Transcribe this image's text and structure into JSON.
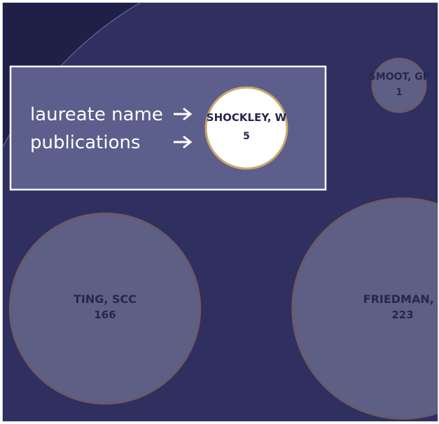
{
  "colors": {
    "background": "#2f3060",
    "background_corner": "#1f2048",
    "bubble_fill": "#5d5f85",
    "bubble_stroke": "#6b5a6a",
    "bubble_text": "#26264e",
    "highlight_fill": "#ffffff",
    "highlight_stroke": "#c9a86a",
    "legend_box_fill": "#5c5e8c",
    "legend_box_stroke": "#ffffff",
    "legend_text": "#ffffff"
  },
  "legend": {
    "name_label": "laureate name",
    "count_label": "publications",
    "example": {
      "name": "SHOCKLEY, W",
      "count": 5
    }
  },
  "chart_data": {
    "type": "bubble",
    "size_encodes": "publications",
    "bubbles": [
      {
        "name": "SMOOT, GF",
        "count": 1
      },
      {
        "name": "TING, SCC",
        "count": 166
      },
      {
        "name": "FRIEDMAN, J",
        "count": 223
      }
    ]
  }
}
